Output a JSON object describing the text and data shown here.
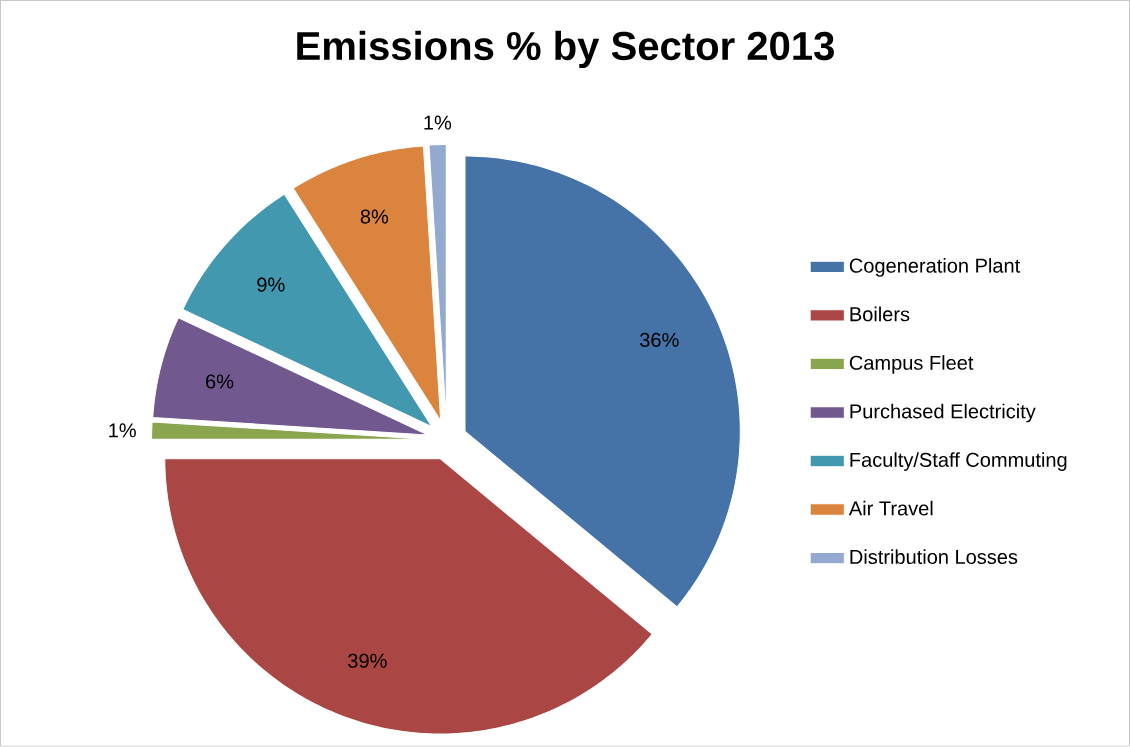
{
  "chart_data": {
    "type": "pie",
    "title": "Emissions % by Sector 2013",
    "categories": [
      "Cogeneration Plant",
      "Boilers",
      "Campus Fleet",
      "Purchased Electricity",
      "Faculty/Staff Commuting",
      "Air Travel",
      "Distribution Losses"
    ],
    "values": [
      36,
      39,
      1,
      6,
      9,
      8,
      1
    ],
    "value_labels": [
      "36%",
      "39%",
      "1%",
      "6%",
      "9%",
      "8%",
      "1%"
    ],
    "colors": [
      "#4572A7",
      "#AA4643",
      "#89A54E",
      "#71588F",
      "#4198AF",
      "#DB843D",
      "#93A9CF"
    ],
    "legend": "right"
  }
}
